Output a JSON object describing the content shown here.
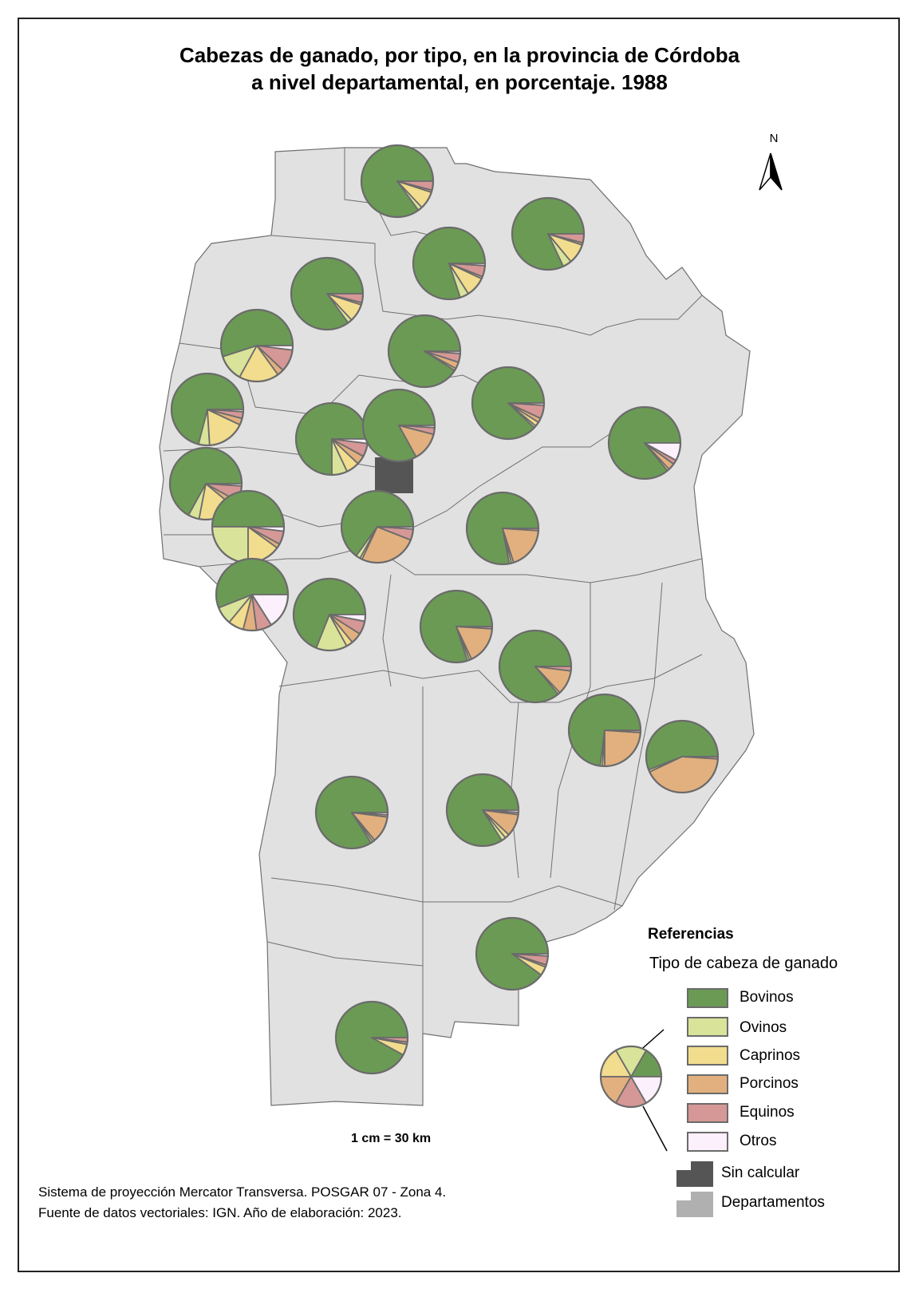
{
  "title": {
    "line1": "Cabezas de ganado, por tipo, en la provincia de Córdoba",
    "line2": "a nivel departamental, en porcentaje. 1988"
  },
  "north_label": "N",
  "scale": "1 cm = 30 km",
  "footer": {
    "line1": "Sistema de proyección Mercator Transversa. POSGAR 07 - Zona 4.",
    "line2": "Fuente de datos vectoriales: IGN. Año de elaboración: 2023."
  },
  "legend": {
    "title": "Referencias",
    "subtitle": "Tipo de cabeza de ganado",
    "categories": [
      {
        "label": "Bovinos",
        "color": "#6b9a55"
      },
      {
        "label": "Ovinos",
        "color": "#d9e39a"
      },
      {
        "label": "Caprinos",
        "color": "#f2dc8e"
      },
      {
        "label": "Porcinos",
        "color": "#e2b07e"
      },
      {
        "label": "Equinos",
        "color": "#d59896"
      },
      {
        "label": "Otros",
        "color": "#fbf0fb"
      }
    ],
    "sin_calcular": {
      "label": "Sin calcular",
      "color": "#555555"
    },
    "departamentos": {
      "label": "Departamentos",
      "color": "#b0b0b0"
    }
  },
  "colors": {
    "province_fill": "#e1e1e1",
    "boundary": "#707070",
    "pie_stroke": "#6b6b6b"
  },
  "chart_data": {
    "type": "pie",
    "categories": [
      "Bovinos",
      "Ovinos",
      "Caprinos",
      "Porcinos",
      "Equinos",
      "Otros"
    ],
    "unit": "%",
    "departments": [
      {
        "values": [
          85,
          2,
          8,
          1,
          4,
          0
        ]
      },
      {
        "values": [
          82,
          4,
          9,
          1,
          4,
          0
        ]
      },
      {
        "values": [
          80,
          4,
          9,
          1,
          5,
          1
        ]
      },
      {
        "values": [
          85,
          2,
          8,
          1,
          4,
          0
        ]
      },
      {
        "values": [
          55,
          12,
          18,
          3,
          10,
          2
        ]
      },
      {
        "values": [
          91,
          0,
          1,
          3,
          4,
          1
        ]
      },
      {
        "values": [
          71,
          5,
          17,
          3,
          3,
          1
        ]
      },
      {
        "values": [
          88,
          1,
          2,
          2,
          6,
          1
        ]
      },
      {
        "values": [
          75,
          7,
          6,
          4,
          6,
          2
        ]
      },
      {
        "values": [
          83,
          0,
          0,
          13,
          3,
          1
        ]
      },
      {
        "values": [
          86,
          0,
          1,
          3,
          2,
          8
        ]
      },
      {
        "values": [
          67,
          5,
          17,
          3,
          7,
          1
        ]
      },
      {
        "values": [
          50,
          25,
          15,
          2,
          6,
          2
        ]
      },
      {
        "values": [
          65,
          2,
          1,
          26,
          5,
          1
        ]
      },
      {
        "values": [
          78,
          1,
          1,
          19,
          1,
          0
        ]
      },
      {
        "values": [
          56,
          8,
          7,
          6,
          7,
          16
        ]
      },
      {
        "values": [
          69,
          14,
          3,
          5,
          6,
          3
        ]
      },
      {
        "values": [
          80,
          1,
          1,
          17,
          1,
          0
        ]
      },
      {
        "values": [
          86,
          0,
          1,
          11,
          2,
          0
        ]
      },
      {
        "values": [
          73,
          1,
          1,
          24,
          1,
          0
        ]
      },
      {
        "values": [
          56,
          0,
          1,
          42,
          1,
          0
        ]
      },
      {
        "values": [
          84,
          1,
          1,
          12,
          1,
          1
        ]
      },
      {
        "values": [
          84,
          2,
          2,
          10,
          1,
          1
        ]
      },
      {
        "values": [
          90,
          0,
          4,
          1,
          4,
          1
        ]
      },
      {
        "values": [
          92,
          0,
          5,
          1,
          2,
          0
        ]
      }
    ]
  }
}
